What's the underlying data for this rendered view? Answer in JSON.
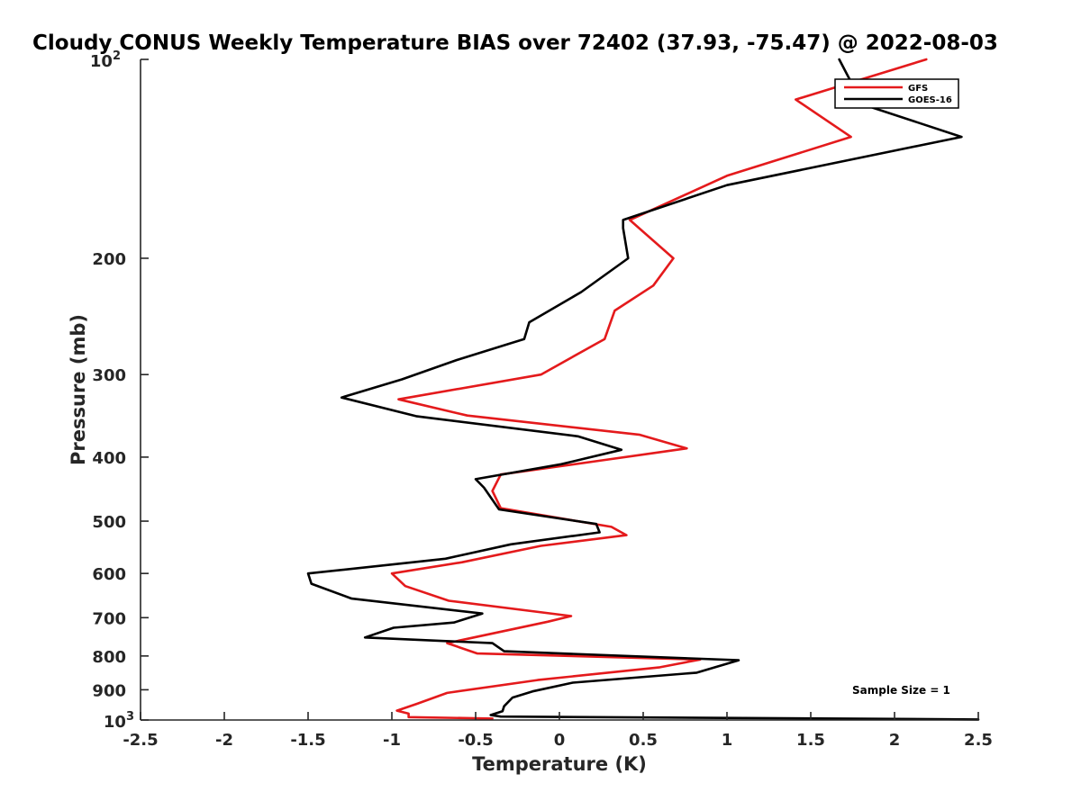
{
  "chart_data": {
    "type": "line",
    "title": "Cloudy CONUS Weekly Temperature BIAS over 72402 (37.93, -75.47) @ 2022-08-03",
    "xlabel": "Temperature (K)",
    "ylabel": "Pressure (mb)",
    "xlim": [
      -2.5,
      2.5
    ],
    "ylim": [
      100,
      1000
    ],
    "y_scale": "log",
    "y_reversed": true,
    "x_ticks": [
      -2.5,
      -2,
      -1.5,
      -1,
      -0.5,
      0,
      0.5,
      1,
      1.5,
      2,
      2.5
    ],
    "x_tick_labels": [
      "-2.5",
      "-2",
      "-1.5",
      "-1",
      "-0.5",
      "0",
      "0.5",
      "1",
      "1.5",
      "2",
      "2.5"
    ],
    "y_ticks": [
      200,
      300,
      400,
      500,
      600,
      700,
      800,
      900
    ],
    "y_tick_labels": [
      "200",
      "300",
      "400",
      "500",
      "600",
      "700",
      "800",
      "900"
    ],
    "y_top_label": {
      "base": "10",
      "exp": "2"
    },
    "y_bottom_label": {
      "base": "10",
      "exp": "3"
    },
    "grid": false,
    "legend_position": "top-right",
    "series": [
      {
        "name": "GFS",
        "color": "#e41a1c",
        "points": [
          [
            2.19,
            100
          ],
          [
            1.41,
            115
          ],
          [
            1.74,
            131
          ],
          [
            1.0,
            150
          ],
          [
            0.42,
            175
          ],
          [
            0.68,
            200
          ],
          [
            0.56,
            220
          ],
          [
            0.33,
            240
          ],
          [
            0.27,
            265
          ],
          [
            -0.11,
            300
          ],
          [
            -0.96,
            327
          ],
          [
            -0.55,
            346
          ],
          [
            0.48,
            370
          ],
          [
            0.76,
            388
          ],
          [
            0.24,
            405
          ],
          [
            -0.35,
            425
          ],
          [
            -0.4,
            450
          ],
          [
            -0.35,
            478
          ],
          [
            0.31,
            510
          ],
          [
            0.4,
            525
          ],
          [
            -0.11,
            545
          ],
          [
            -0.58,
            577
          ],
          [
            -1.0,
            600
          ],
          [
            -0.92,
            627
          ],
          [
            -0.66,
            660
          ],
          [
            0.07,
            696
          ],
          [
            -0.07,
            710
          ],
          [
            -0.67,
            765
          ],
          [
            -0.49,
            793
          ],
          [
            0.84,
            810
          ],
          [
            0.6,
            832
          ],
          [
            -0.13,
            870
          ],
          [
            -0.67,
            910
          ],
          [
            -0.85,
            945
          ],
          [
            -0.97,
            968
          ],
          [
            -0.9,
            978
          ],
          [
            -0.9,
            990
          ],
          [
            -0.4,
            995
          ]
        ]
      },
      {
        "name": "GOES-16",
        "color": "#000000",
        "points": [
          [
            1.67,
            100
          ],
          [
            1.81,
            117
          ],
          [
            2.4,
            131
          ],
          [
            1.0,
            155
          ],
          [
            0.38,
            175
          ],
          [
            0.38,
            180
          ],
          [
            0.41,
            200
          ],
          [
            0.13,
            225
          ],
          [
            -0.18,
            250
          ],
          [
            -0.21,
            265
          ],
          [
            -0.61,
            285
          ],
          [
            -0.94,
            305
          ],
          [
            -1.3,
            325
          ],
          [
            -0.85,
            347
          ],
          [
            0.11,
            372
          ],
          [
            0.37,
            390
          ],
          [
            0.01,
            410
          ],
          [
            -0.5,
            432
          ],
          [
            -0.45,
            445
          ],
          [
            -0.36,
            480
          ],
          [
            0.22,
            505
          ],
          [
            0.24,
            520
          ],
          [
            -0.29,
            542
          ],
          [
            -0.68,
            570
          ],
          [
            -1.5,
            600
          ],
          [
            -1.48,
            622
          ],
          [
            -1.24,
            655
          ],
          [
            -0.46,
            690
          ],
          [
            -0.63,
            712
          ],
          [
            -0.99,
            725
          ],
          [
            -1.16,
            750
          ],
          [
            -0.4,
            765
          ],
          [
            -0.33,
            787
          ],
          [
            1.07,
            812
          ],
          [
            0.82,
            848
          ],
          [
            0.08,
            878
          ],
          [
            -0.16,
            905
          ],
          [
            -0.28,
            925
          ],
          [
            -0.33,
            953
          ],
          [
            -0.34,
            970
          ],
          [
            -0.41,
            983
          ],
          [
            -0.35,
            988
          ],
          [
            2.5,
            998
          ]
        ]
      }
    ],
    "annotation": "Sample Size = 1"
  }
}
